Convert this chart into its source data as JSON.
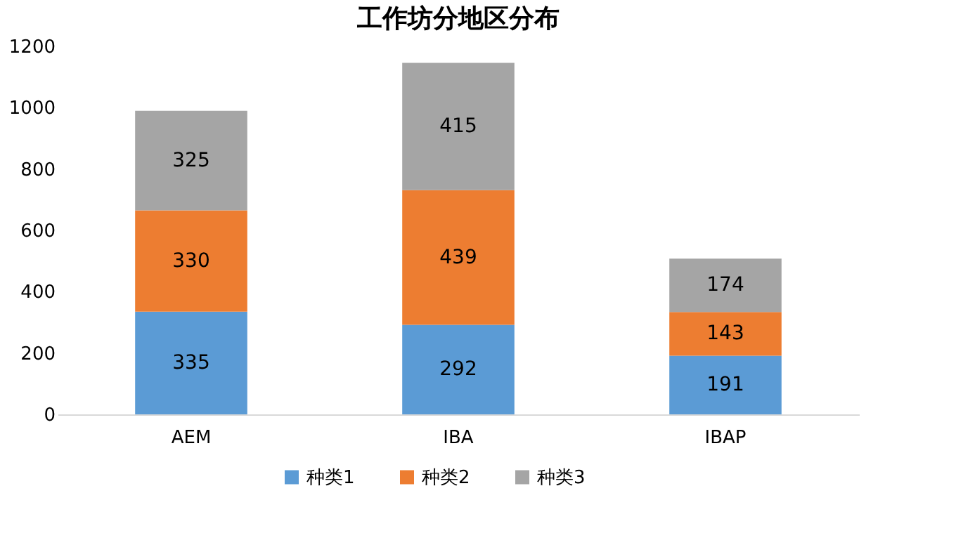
{
  "chart_data": {
    "type": "bar",
    "title": "工作坊分地区分布",
    "categories": [
      "AEM",
      "IBA",
      "IBAP"
    ],
    "stacked": true,
    "series": [
      {
        "name": "种类1",
        "color": "#5b9bd5",
        "values": [
          335,
          292,
          191
        ]
      },
      {
        "name": "种类2",
        "color": "#ed7d31",
        "values": [
          330,
          439,
          143
        ]
      },
      {
        "name": "种类3",
        "color": "#a5a5a5",
        "values": [
          325,
          415,
          174
        ]
      }
    ],
    "ylim": [
      0,
      1200
    ],
    "yticks": [
      0,
      200,
      400,
      600,
      800,
      1000,
      1200
    ],
    "grid": false,
    "legend": "bottom",
    "data_labels": true
  }
}
